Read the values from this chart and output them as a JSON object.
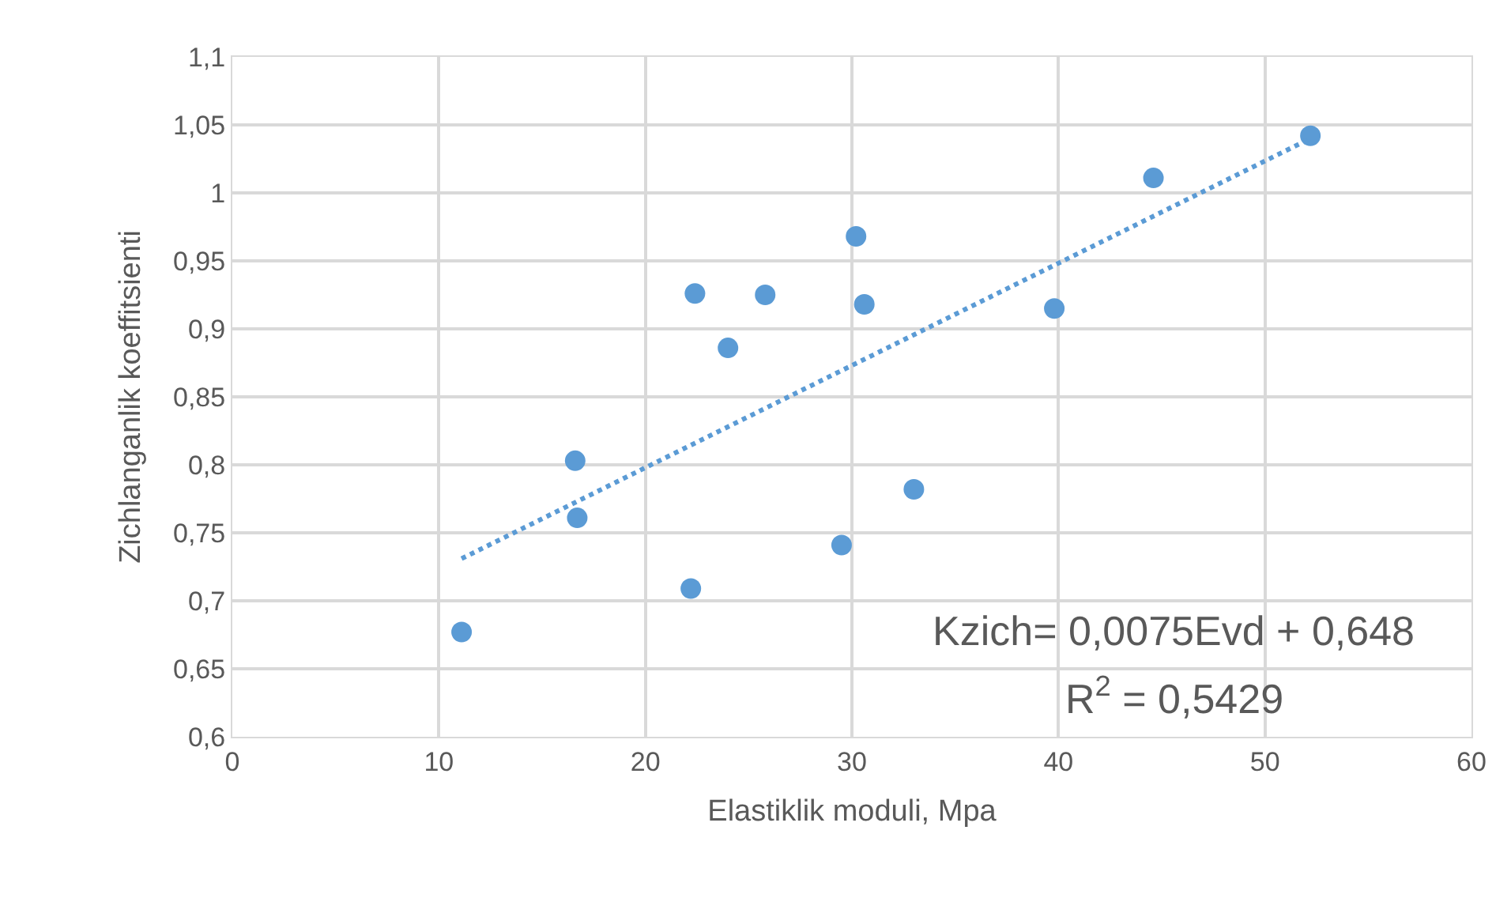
{
  "chart_data": {
    "type": "scatter",
    "xlabel": "Elastiklik moduli, Mpa",
    "ylabel": "Zichlanganlik koeffitsienti",
    "xlim": [
      0,
      60
    ],
    "xticks": [
      0,
      10,
      20,
      30,
      40,
      50,
      60
    ],
    "ylim": [
      0.6,
      1.1
    ],
    "yticks": [
      {
        "value": 0.6,
        "label": "0,6"
      },
      {
        "value": 0.65,
        "label": "0,65"
      },
      {
        "value": 0.7,
        "label": "0,7"
      },
      {
        "value": 0.75,
        "label": "0,75"
      },
      {
        "value": 0.8,
        "label": "0,8"
      },
      {
        "value": 0.85,
        "label": "0,85"
      },
      {
        "value": 0.9,
        "label": "0,9"
      },
      {
        "value": 0.95,
        "label": "0,95"
      },
      {
        "value": 1.0,
        "label": "1"
      },
      {
        "value": 1.05,
        "label": "1,05"
      },
      {
        "value": 1.1,
        "label": "1,1"
      }
    ],
    "grid": true,
    "marker": "circle",
    "series": [
      {
        "color": "#5b9bd5",
        "x": [
          11.1,
          16.6,
          16.7,
          22.2,
          22.4,
          24.0,
          25.8,
          29.5,
          30.2,
          30.6,
          33.0,
          39.8,
          44.6,
          52.2
        ],
        "values": [
          0.677,
          0.803,
          0.761,
          0.709,
          0.926,
          0.886,
          0.925,
          0.741,
          0.968,
          0.918,
          0.782,
          0.915,
          1.011,
          1.042
        ]
      },
      {
        "type": "line",
        "color": "#5b9bd5",
        "line_style": "dotted",
        "marker": "none",
        "x": [
          11.1,
          52.2
        ],
        "values": [
          0.731,
          1.04
        ]
      }
    ],
    "annotations": [
      "Kzich= 0,0075Evd + 0,648",
      "R$^{2}$ = 0,5429"
    ]
  }
}
